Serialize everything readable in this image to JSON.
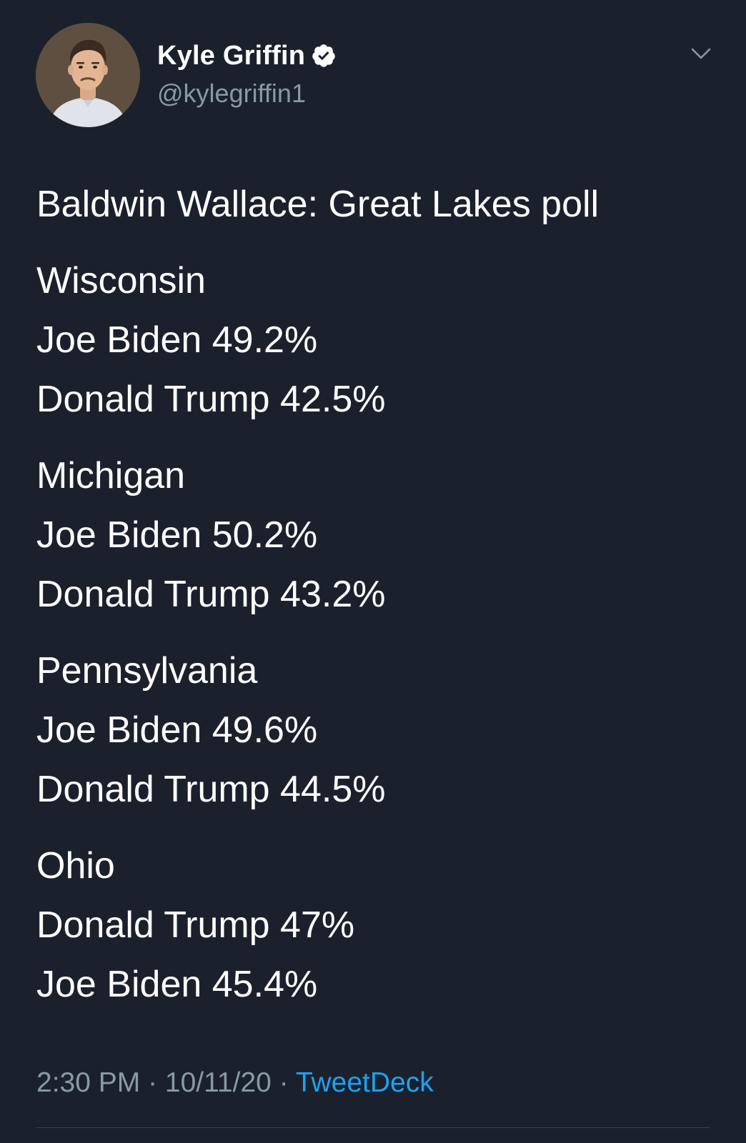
{
  "author": {
    "name": "Kyle Griffin",
    "handle": "@kylegriffin1",
    "verified": true
  },
  "icons": {
    "verified": "verified-badge-icon",
    "menu": "chevron-down-icon"
  },
  "tweet": {
    "headline": "Baldwin Wallace: Great Lakes poll",
    "states": [
      {
        "name": "Wisconsin",
        "lines": [
          "Joe Biden 49.2%",
          "Donald Trump 42.5%"
        ]
      },
      {
        "name": "Michigan",
        "lines": [
          "Joe Biden 50.2%",
          "Donald Trump 43.2%"
        ]
      },
      {
        "name": "Pennsylvania",
        "lines": [
          "Joe Biden 49.6%",
          "Donald Trump 44.5%"
        ]
      },
      {
        "name": "Ohio",
        "lines": [
          "Donald Trump 47%",
          "Joe Biden 45.4%"
        ]
      }
    ]
  },
  "meta": {
    "time": "2:30 PM",
    "separator": " · ",
    "date": "10/11/20",
    "source": "TweetDeck"
  },
  "colors": {
    "background": "#1b212c",
    "text": "#ffffff",
    "muted": "#8899a6",
    "link": "#1da1f2"
  }
}
